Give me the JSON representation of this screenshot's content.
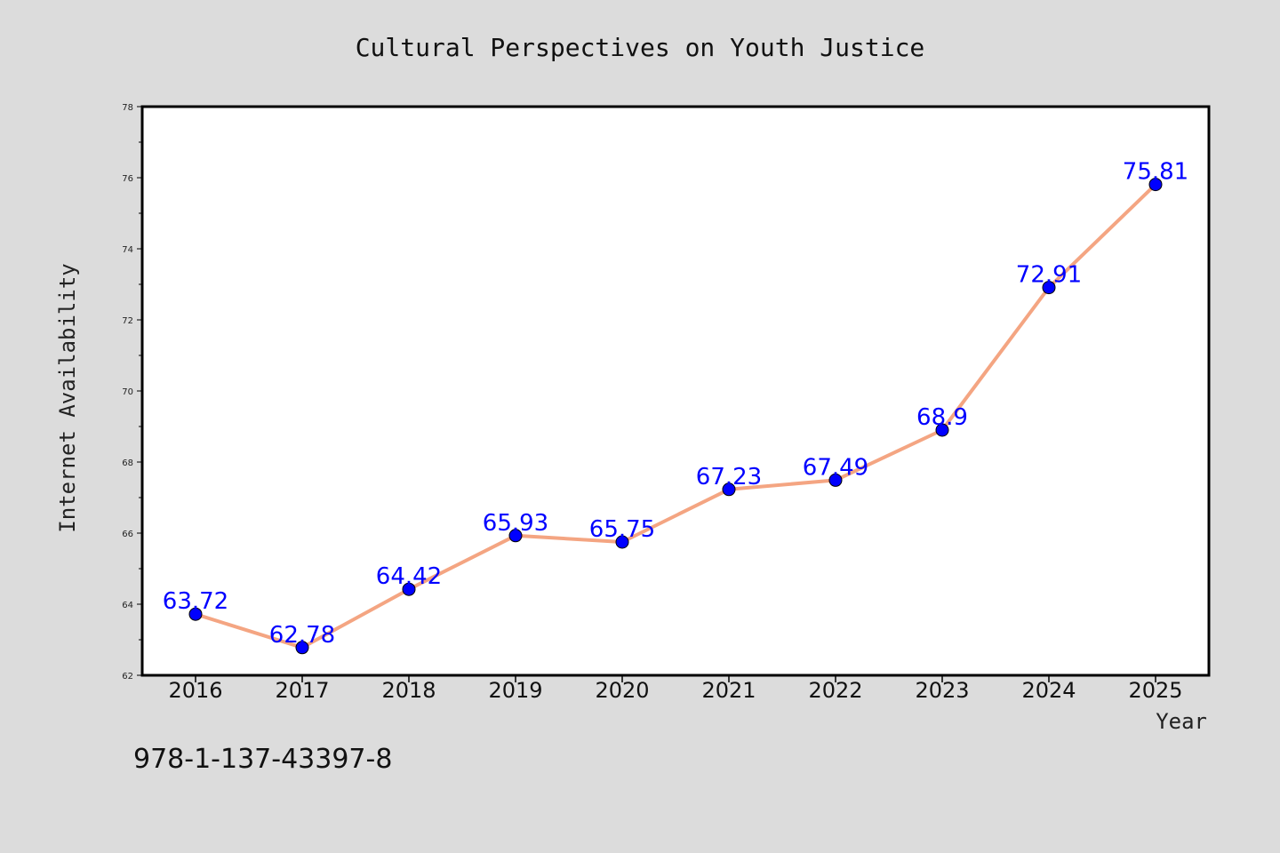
{
  "chart_data": {
    "type": "line",
    "title": "Cultural Perspectives on Youth Justice",
    "xlabel": "Year",
    "ylabel": "Internet Availability",
    "x": [
      "2016",
      "2017",
      "2018",
      "2019",
      "2020",
      "2021",
      "2022",
      "2023",
      "2024",
      "2025"
    ],
    "series": [
      {
        "values": [
          63.72,
          62.78,
          64.42,
          65.93,
          65.75,
          67.23,
          67.49,
          68.9,
          72.91,
          75.81
        ],
        "labels": [
          "63.72",
          "62.78",
          "64.42",
          "65.93",
          "65.75",
          "67.23",
          "67.49",
          "68.9",
          "72.91",
          "75.81"
        ]
      }
    ],
    "ylim": [
      62,
      78
    ],
    "yticks": [
      62,
      64,
      66,
      68,
      70,
      72,
      74,
      76,
      78
    ],
    "grid": false,
    "colors": {
      "line": "#f4a582",
      "marker": "#0000ff",
      "label": "#0000ff",
      "background": "#dcdcdc",
      "plot_background": "#ffffff"
    }
  },
  "footer": {
    "isbn": "978-1-137-43397-8"
  }
}
